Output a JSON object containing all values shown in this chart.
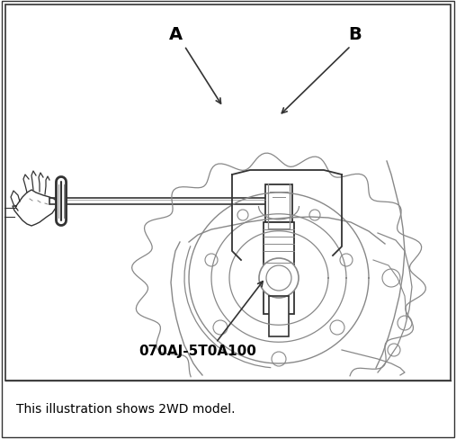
{
  "label_A": "A",
  "label_B": "B",
  "part_number": "070AJ-5T0A100",
  "caption": "This illustration shows 2WD model.",
  "border_color": "#000000",
  "background_color": "#ffffff",
  "text_color": "#000000",
  "line_color": "#333333",
  "light_line_color": "#888888",
  "fig_width": 5.07,
  "fig_height": 4.89,
  "dpi": 100
}
